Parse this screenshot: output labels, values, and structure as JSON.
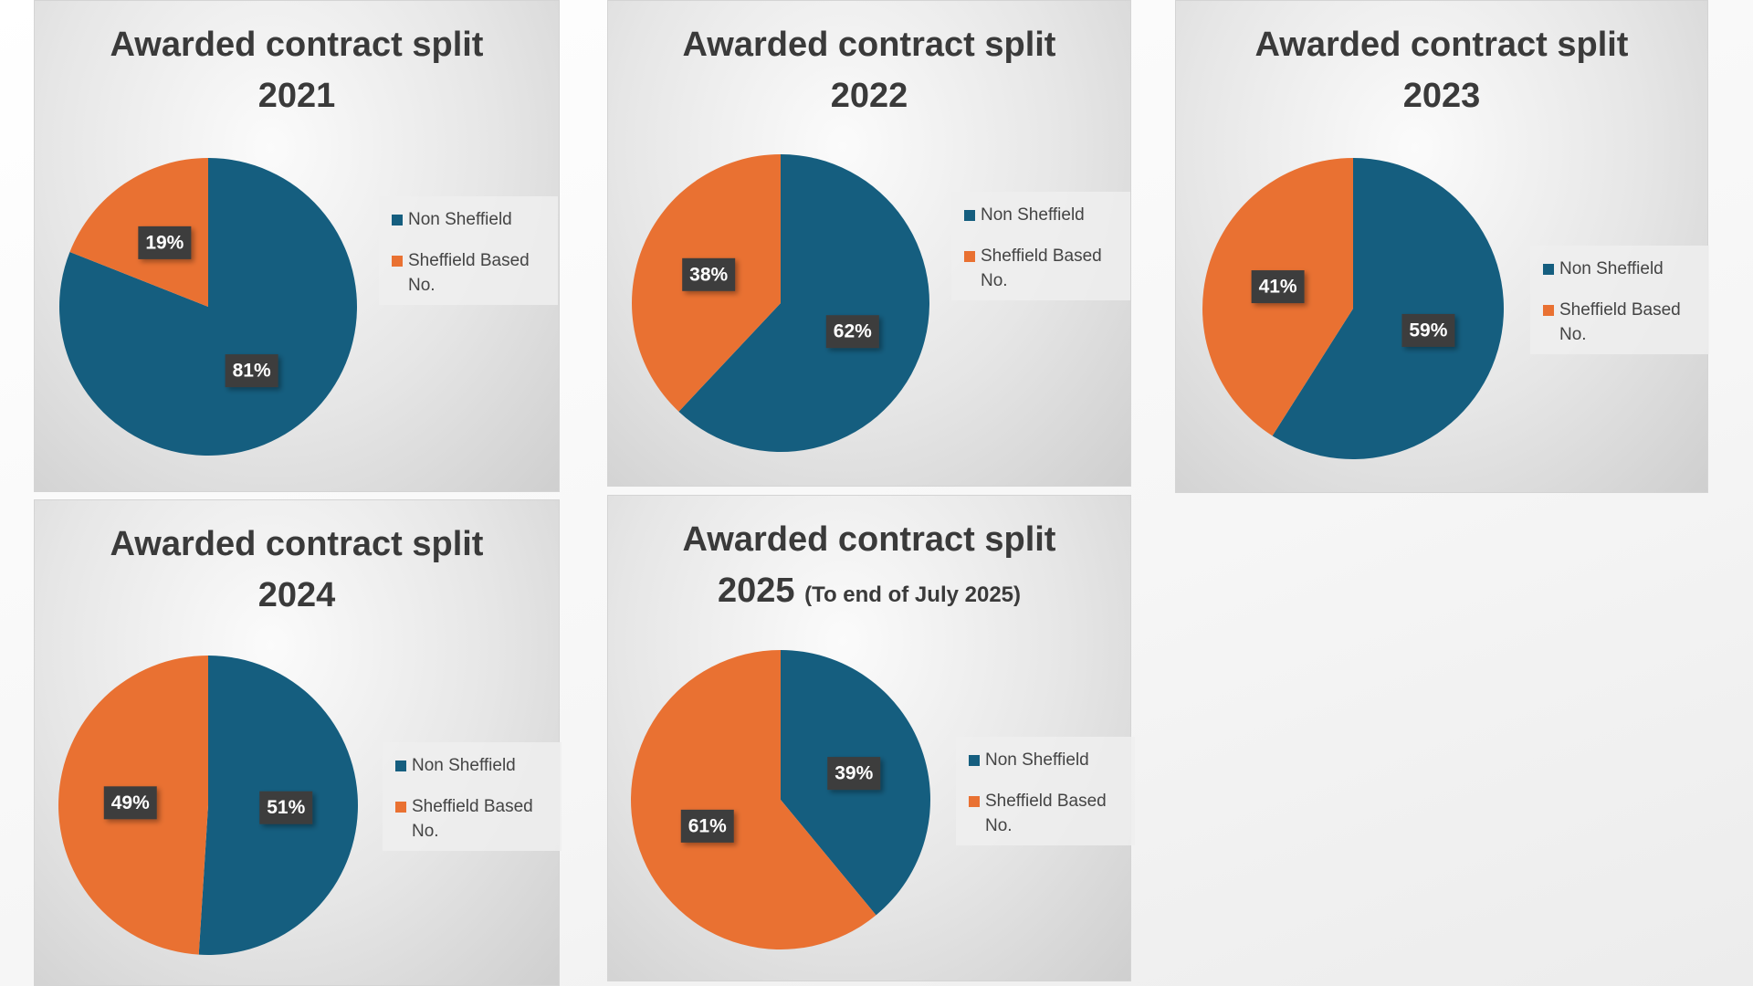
{
  "chart_data": [
    {
      "type": "pie",
      "title": "Awarded contract split 2021",
      "categories": [
        "Non Sheffield",
        "Sheffield Based No."
      ],
      "values": [
        81,
        19
      ],
      "value_labels": [
        "81%",
        "19%"
      ],
      "colors": [
        "#155e7f",
        "#e97132"
      ]
    },
    {
      "type": "pie",
      "title": "Awarded contract split 2022",
      "categories": [
        "Non Sheffield",
        "Sheffield Based No."
      ],
      "values": [
        62,
        38
      ],
      "value_labels": [
        "62%",
        "38%"
      ],
      "colors": [
        "#155e7f",
        "#e97132"
      ]
    },
    {
      "type": "pie",
      "title": "Awarded contract split 2023",
      "categories": [
        "Non Sheffield",
        "Sheffield Based No."
      ],
      "values": [
        59,
        41
      ],
      "value_labels": [
        "59%",
        "41%"
      ],
      "colors": [
        "#155e7f",
        "#e97132"
      ]
    },
    {
      "type": "pie",
      "title": "Awarded contract split 2024",
      "categories": [
        "Non Sheffield",
        "Sheffield Based No."
      ],
      "values": [
        51,
        49
      ],
      "value_labels": [
        "51%",
        "49%"
      ],
      "colors": [
        "#155e7f",
        "#e97132"
      ]
    },
    {
      "type": "pie",
      "title": "Awarded contract split 2025",
      "subtitle": "(To end of July 2025)",
      "categories": [
        "Non Sheffield",
        "Sheffield Based No."
      ],
      "values": [
        39,
        61
      ],
      "value_labels": [
        "39%",
        "61%"
      ],
      "colors": [
        "#155e7f",
        "#e97132"
      ]
    }
  ]
}
